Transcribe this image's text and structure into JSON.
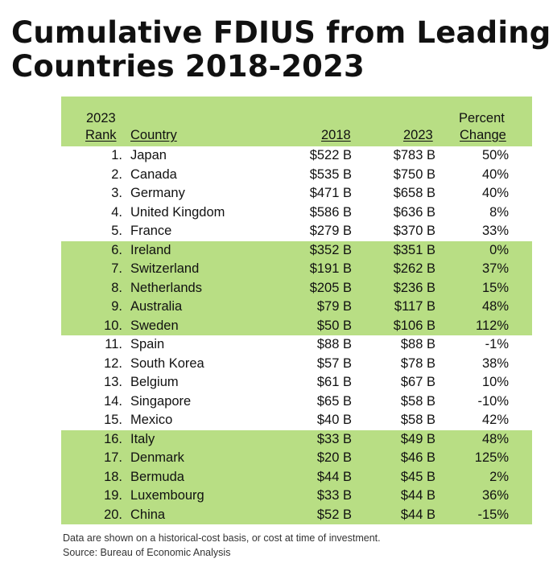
{
  "title_line1": "Cumulative FDIUS from Leading",
  "title_line2": "Countries 2018-2023",
  "header": {
    "rank_top": "2023",
    "rank_bottom": "Rank",
    "country": "Country",
    "y2018": "2018",
    "y2023": "2023",
    "pct_top": "Percent",
    "pct_bottom": "Change"
  },
  "rows": [
    {
      "rank": "1.",
      "country": "Japan",
      "v2018": "$522 B",
      "v2023": "$783 B",
      "pct": "50%"
    },
    {
      "rank": "2.",
      "country": "Canada",
      "v2018": "$535 B",
      "v2023": "$750 B",
      "pct": "40%"
    },
    {
      "rank": "3.",
      "country": "Germany",
      "v2018": "$471 B",
      "v2023": "$658 B",
      "pct": "40%"
    },
    {
      "rank": "4.",
      "country": "United Kingdom",
      "v2018": "$586 B",
      "v2023": "$636 B",
      "pct": "8%"
    },
    {
      "rank": "5.",
      "country": "France",
      "v2018": "$279 B",
      "v2023": "$370 B",
      "pct": "33%"
    },
    {
      "rank": "6.",
      "country": "Ireland",
      "v2018": "$352 B",
      "v2023": "$351 B",
      "pct": "0%"
    },
    {
      "rank": "7.",
      "country": "Switzerland",
      "v2018": "$191 B",
      "v2023": "$262 B",
      "pct": "37%"
    },
    {
      "rank": "8.",
      "country": "Netherlands",
      "v2018": "$205 B",
      "v2023": "$236 B",
      "pct": "15%"
    },
    {
      "rank": "9.",
      "country": "Australia",
      "v2018": "$79 B",
      "v2023": "$117 B",
      "pct": "48%"
    },
    {
      "rank": "10.",
      "country": "Sweden",
      "v2018": "$50 B",
      "v2023": "$106 B",
      "pct": "112%"
    },
    {
      "rank": "11.",
      "country": "Spain",
      "v2018": "$88 B",
      "v2023": "$88 B",
      "pct": "-1%"
    },
    {
      "rank": "12.",
      "country": "South Korea",
      "v2018": "$57 B",
      "v2023": "$78 B",
      "pct": "38%"
    },
    {
      "rank": "13.",
      "country": "Belgium",
      "v2018": "$61 B",
      "v2023": "$67 B",
      "pct": "10%"
    },
    {
      "rank": "14.",
      "country": "Singapore",
      "v2018": "$65 B",
      "v2023": "$58 B",
      "pct": "-10%"
    },
    {
      "rank": "15.",
      "country": "Mexico",
      "v2018": "$40 B",
      "v2023": "$58 B",
      "pct": "42%"
    },
    {
      "rank": "16.",
      "country": "Italy",
      "v2018": "$33 B",
      "v2023": "$49 B",
      "pct": "48%"
    },
    {
      "rank": "17.",
      "country": "Denmark",
      "v2018": "$20 B",
      "v2023": "$46 B",
      "pct": "125%"
    },
    {
      "rank": "18.",
      "country": "Bermuda",
      "v2018": "$44 B",
      "v2023": "$45 B",
      "pct": "2%"
    },
    {
      "rank": "19.",
      "country": "Luxembourg",
      "v2018": "$33 B",
      "v2023": "$44 B",
      "pct": "36%"
    },
    {
      "rank": "20.",
      "country": "China",
      "v2018": "$52 B",
      "v2023": "$44 B",
      "pct": "-15%"
    }
  ],
  "colors": {
    "band_green": "#b8de84",
    "text": "#111111"
  },
  "footnote_line1": "Data are shown on a historical-cost basis, or cost at time of investment.",
  "footnote_line2": "Source: Bureau of Economic Analysis"
}
